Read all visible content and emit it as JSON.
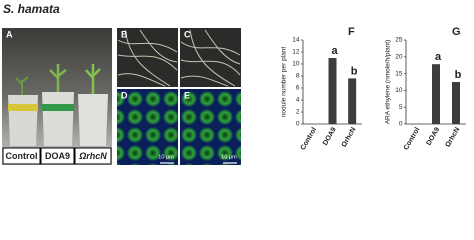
{
  "title": "S. hamata",
  "panel_labels": [
    "A",
    "B",
    "C",
    "D",
    "E"
  ],
  "photo_labels": [
    "Control",
    "DOA9",
    "ΩrhcN"
  ],
  "scale_bars": [
    "10 μm",
    "10 μm"
  ],
  "chart_data": [
    {
      "type": "bar",
      "panel_label": "F",
      "ylabel": "nodule number per plant",
      "categories": [
        "Control",
        "DOA9",
        "ΩrhcN"
      ],
      "values": [
        0,
        11,
        7.6
      ],
      "significance": [
        null,
        "a",
        "b"
      ],
      "color": "#3d3d3d",
      "ylim": [
        0,
        14
      ],
      "yticks": [
        0,
        2,
        4,
        6,
        8,
        10,
        12,
        14
      ]
    },
    {
      "type": "bar",
      "panel_label": "G",
      "ylabel": "ARA ethylene (nmole/h/plant)",
      "categories": [
        "Control",
        "DOA9",
        "ΩrhcN"
      ],
      "values": [
        0,
        17.8,
        12.5
      ],
      "significance": [
        null,
        "a",
        "b"
      ],
      "color": "#3d3d3d",
      "ylim": [
        0,
        25
      ],
      "yticks": [
        0,
        5,
        10,
        15,
        20,
        25
      ]
    }
  ]
}
